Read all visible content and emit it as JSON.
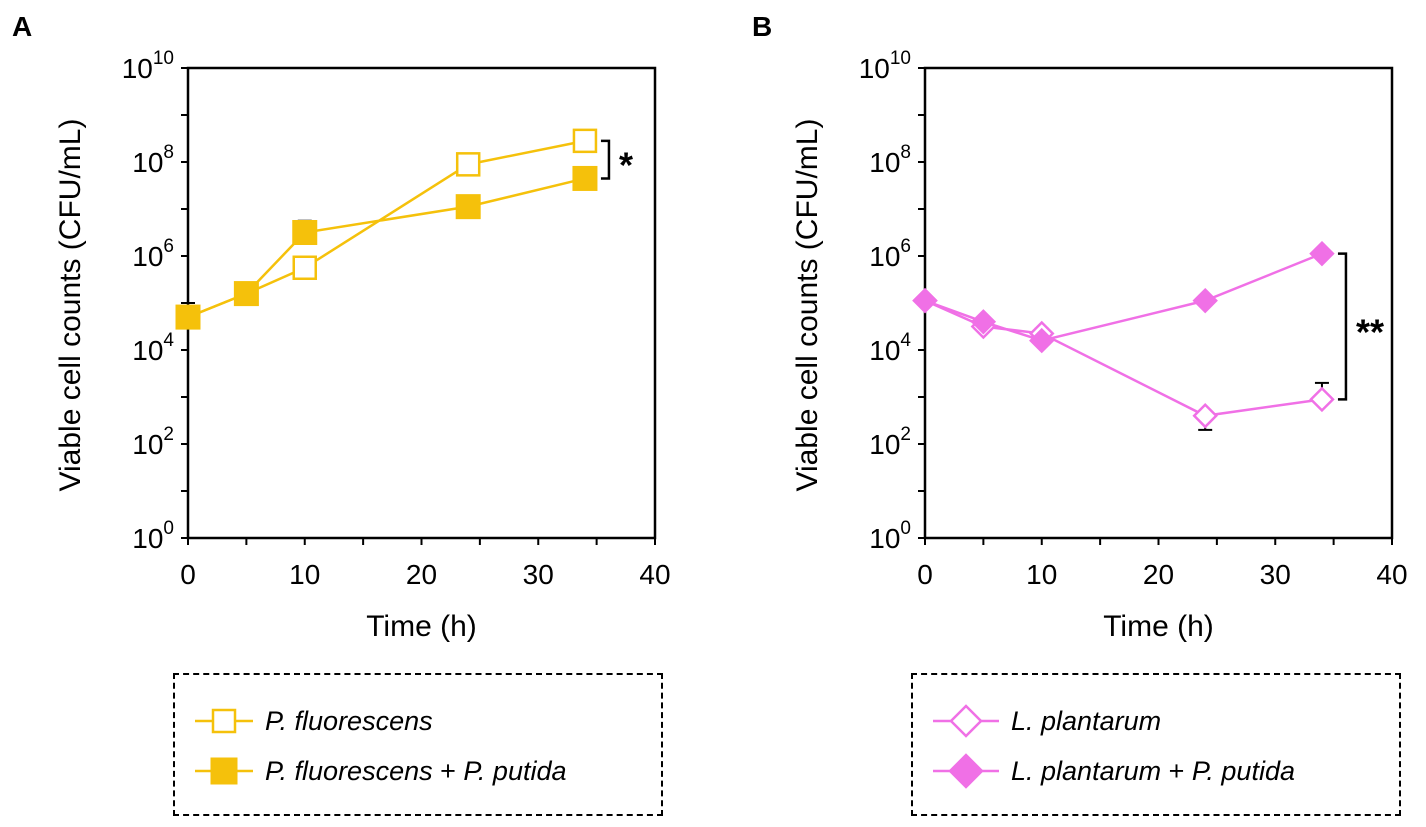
{
  "chart_data": [
    {
      "type": "line",
      "panel_label": "A",
      "xlabel": "Time (h)",
      "ylabel": "Viable cell counts (CFU/mL)",
      "xlim": [
        0,
        40
      ],
      "x_ticks": [
        0,
        10,
        20,
        30,
        40
      ],
      "y_scale": "log10",
      "ylim_exponent": [
        0,
        10
      ],
      "y_tick_exponents": [
        0,
        2,
        4,
        6,
        8,
        10
      ],
      "y_tick_base": "10",
      "color": "#F5C10B",
      "series": [
        {
          "name": "P. fluorescens",
          "marker": "square-open",
          "x": [
            0,
            5,
            10,
            24,
            34
          ],
          "log10_y": [
            4.7,
            5.2,
            5.75,
            7.95,
            8.45
          ],
          "err_log10_upper": [
            0.2,
            0.15,
            0.1,
            0.05,
            0.05
          ]
        },
        {
          "name": "P. fluorescens + P. putida",
          "marker": "square-filled",
          "x": [
            0,
            5,
            10,
            24,
            34
          ],
          "log10_y": [
            4.7,
            5.2,
            6.5,
            7.05,
            7.65
          ],
          "err_log10_upper": [
            0.3,
            0.15,
            0.25,
            0.05,
            0.05
          ]
        }
      ],
      "significance": {
        "label": "*",
        "between_log10": [
          7.65,
          8.45
        ]
      },
      "legend": {
        "entries": [
          {
            "italic": "P. fluorescens",
            "plain": "",
            "italic2": ""
          },
          {
            "italic": "P. fluorescens",
            "plain": " + ",
            "italic2": "P. putida"
          }
        ]
      }
    },
    {
      "type": "line",
      "panel_label": "B",
      "xlabel": "Time (h)",
      "ylabel": "Viable cell counts (CFU/mL)",
      "xlim": [
        0,
        40
      ],
      "x_ticks": [
        0,
        10,
        20,
        30,
        40
      ],
      "y_scale": "log10",
      "ylim_exponent": [
        0,
        10
      ],
      "y_tick_exponents": [
        0,
        2,
        4,
        6,
        8,
        10
      ],
      "y_tick_base": "10",
      "color": "#F070E6",
      "series": [
        {
          "name": "L. plantarum",
          "marker": "diamond-open",
          "x": [
            0,
            5,
            10,
            24,
            34
          ],
          "log10_y": [
            5.05,
            4.5,
            4.35,
            2.6,
            2.95
          ],
          "err_log10_upper": [
            0.1,
            0.1,
            0.1,
            0.0,
            0.35
          ],
          "err_log10_lower": [
            0.0,
            0.0,
            0.15,
            0.3,
            0.0
          ]
        },
        {
          "name": "L. plantarum + P. putida",
          "marker": "diamond-filled",
          "x": [
            0,
            5,
            10,
            24,
            34
          ],
          "log10_y": [
            5.05,
            4.6,
            4.2,
            5.05,
            6.05
          ],
          "err_log10_upper": [
            0.05,
            0.05,
            0.1,
            0.05,
            0.05
          ],
          "err_log10_lower": [
            0.0,
            0.0,
            0.0,
            0.0,
            0.0
          ]
        }
      ],
      "significance": {
        "label": "**",
        "between_log10": [
          2.95,
          6.05
        ]
      },
      "legend": {
        "entries": [
          {
            "italic": "L. plantarum",
            "plain": "",
            "italic2": ""
          },
          {
            "italic": "L. plantarum",
            "plain": " + ",
            "italic2": "P. putida"
          }
        ]
      }
    }
  ]
}
